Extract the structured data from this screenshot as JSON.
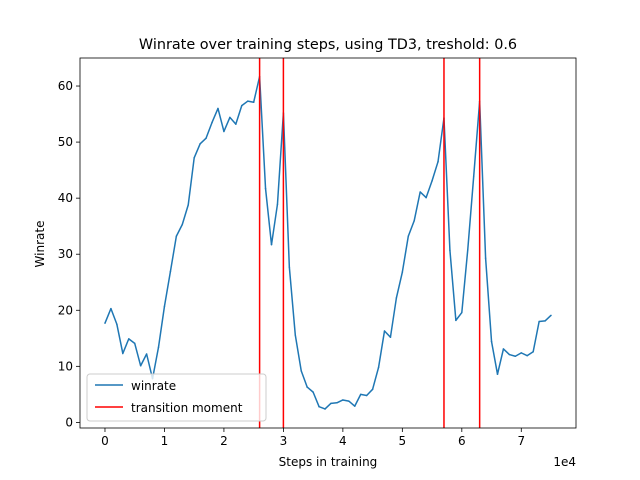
{
  "chart_data": {
    "type": "line",
    "title": "Winrate over training steps, using TD3, treshold: 0.6",
    "xlabel": "Steps in training",
    "ylabel": "Winrate",
    "x_offset_label": "1e4",
    "xlim": [
      -0.42,
      7.92
    ],
    "ylim": [
      -1,
      65
    ],
    "x_ticks": [
      0,
      1,
      2,
      3,
      4,
      5,
      6,
      7
    ],
    "y_ticks": [
      0,
      10,
      20,
      30,
      40,
      50,
      60
    ],
    "grid": false,
    "legend_position": "lower-left",
    "series": [
      {
        "name": "winrate",
        "color": "#1f77b4",
        "x": [
          0,
          0.1,
          0.2,
          0.3,
          0.4,
          0.5,
          0.6,
          0.7,
          0.8,
          0.9,
          1.0,
          1.1,
          1.2,
          1.3,
          1.4,
          1.5,
          1.6,
          1.7,
          1.8,
          1.9,
          2.0,
          2.1,
          2.2,
          2.3,
          2.4,
          2.5,
          2.6,
          2.7,
          2.8,
          2.9,
          3.0,
          3.1,
          3.2,
          3.3,
          3.4,
          3.5,
          3.6,
          3.7,
          3.8,
          3.9,
          4.0,
          4.1,
          4.2,
          4.3,
          4.4,
          4.5,
          4.6,
          4.7,
          4.8,
          4.9,
          5.0,
          5.1,
          5.2,
          5.3,
          5.4,
          5.5,
          5.6,
          5.7,
          5.8,
          5.9,
          6.0,
          6.1,
          6.2,
          6.3,
          6.4,
          6.5,
          6.6,
          6.7,
          6.8,
          6.9,
          7.0,
          7.1,
          7.2,
          7.3,
          7.4,
          7.5
        ],
        "y": [
          17.7,
          20.3,
          17.5,
          12.3,
          14.9,
          14.1,
          10.1,
          12.2,
          7.8,
          13.4,
          20.7,
          26.9,
          33.2,
          35.3,
          38.8,
          47.2,
          49.7,
          50.7,
          53.5,
          56.0,
          51.9,
          54.4,
          53.2,
          56.5,
          57.3,
          57.1,
          61.7,
          41.7,
          31.7,
          38.9,
          55.2,
          27.7,
          15.6,
          9.2,
          6.3,
          5.4,
          2.8,
          2.4,
          3.4,
          3.5,
          4.0,
          3.8,
          2.9,
          5.0,
          4.8,
          5.9,
          9.8,
          16.3,
          15.2,
          22.2,
          26.8,
          33.2,
          36.0,
          41.1,
          40.1,
          43.1,
          46.5,
          54.3,
          30.7,
          18.2,
          19.6,
          30.8,
          43.9,
          57.3,
          29.3,
          14.4,
          8.6,
          13.1,
          12.1,
          11.8,
          12.4,
          11.9,
          12.6,
          18.0,
          18.1,
          19.1
        ]
      }
    ],
    "vlines": {
      "name": "transition moment",
      "color": "#ff0000",
      "x": [
        2.6,
        3.0,
        5.7,
        6.3
      ]
    }
  }
}
